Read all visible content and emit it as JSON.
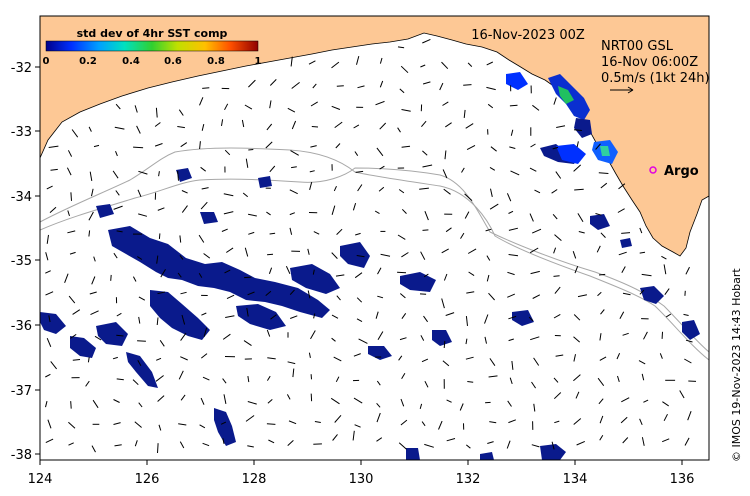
{
  "header": {
    "date": "16-Nov-2023 00Z",
    "current_product": "NRT00 GSL",
    "current_time": "16-Nov 06:00Z",
    "vector_scale": "0.5m/s (1kt 24h)"
  },
  "colorbar": {
    "title": "std dev of 4hr SST comp",
    "ticks": [
      "0",
      "0.2",
      "0.4",
      "0.6",
      "0.8",
      "1"
    ]
  },
  "argo": {
    "label": "Argo",
    "lon": 135.55,
    "lat": -33.6
  },
  "credit": "© IMOS 19-Nov-2023 14:43 Hobart",
  "colors": {
    "land": "#fdc895",
    "sst_low": "#0a1a8c",
    "argo_marker": "#e000e0",
    "isobath": "#a8a8a8"
  },
  "axes": {
    "x_ticks": [
      "124",
      "126",
      "128",
      "130",
      "132",
      "134",
      "136"
    ],
    "y_ticks": [
      "-32",
      "-33",
      "-34",
      "-35",
      "-36",
      "-37",
      "-38"
    ],
    "lon_range": [
      124,
      136.5
    ],
    "lat_range": [
      -38.1,
      -31.25
    ]
  }
}
